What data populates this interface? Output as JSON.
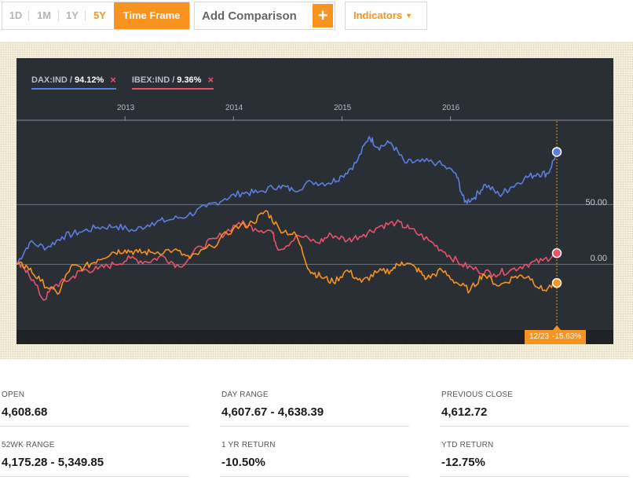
{
  "toolbar": {
    "ranges": [
      "1D",
      "1M",
      "1Y",
      "5Y"
    ],
    "active_range": "5Y",
    "time_frame_label": "Time Frame",
    "comparison_placeholder": "Add Comparison",
    "comparison_add": "+",
    "indicators_label": "Indicators",
    "indicators_caret": "▼"
  },
  "legend": {
    "dax": {
      "name": "DAX:IND /",
      "value": "94.12%",
      "remove": "×"
    },
    "ibex": {
      "name": "IBEX:IND /",
      "value": "9.36%",
      "remove": "×"
    }
  },
  "colors": {
    "dax": "#5b7fe0",
    "ibex": "#e8536a",
    "main": "#f7931e",
    "background": "#2a2e35"
  },
  "chart_data": {
    "type": "line",
    "x_ticks": [
      "2013",
      "2014",
      "2015",
      "2016"
    ],
    "y_ticks": [
      {
        "value": 50,
        "label": "50.00"
      },
      {
        "value": 0,
        "label": "0.00"
      }
    ],
    "ylim": [
      -55,
      120
    ],
    "x_range": [
      2012.0,
      2016.98
    ],
    "hover_date": "12/23",
    "hover_value": "-15.63%",
    "series": [
      {
        "name": "DAX:IND",
        "color": "#5b7fe0",
        "points": [
          [
            2012.0,
            0
          ],
          [
            2012.12,
            18
          ],
          [
            2012.28,
            14
          ],
          [
            2012.42,
            23
          ],
          [
            2012.58,
            27
          ],
          [
            2012.75,
            31
          ],
          [
            2012.92,
            32
          ],
          [
            2013.08,
            28
          ],
          [
            2013.25,
            35
          ],
          [
            2013.4,
            37
          ],
          [
            2013.58,
            41
          ],
          [
            2013.75,
            48
          ],
          [
            2013.92,
            55
          ],
          [
            2014.08,
            60
          ],
          [
            2014.22,
            60
          ],
          [
            2014.42,
            66
          ],
          [
            2014.55,
            62
          ],
          [
            2014.72,
            69
          ],
          [
            2014.88,
            68
          ],
          [
            2015.0,
            74
          ],
          [
            2015.13,
            85
          ],
          [
            2015.25,
            107
          ],
          [
            2015.33,
            98
          ],
          [
            2015.45,
            102
          ],
          [
            2015.58,
            85
          ],
          [
            2015.72,
            86
          ],
          [
            2015.88,
            85
          ],
          [
            2016.05,
            76
          ],
          [
            2016.13,
            52
          ],
          [
            2016.22,
            56
          ],
          [
            2016.32,
            67
          ],
          [
            2016.45,
            58
          ],
          [
            2016.55,
            64
          ],
          [
            2016.68,
            72
          ],
          [
            2016.8,
            76
          ],
          [
            2016.9,
            76
          ],
          [
            2016.98,
            94.12
          ]
        ]
      },
      {
        "name": "IBEX:IND",
        "color": "#e8536a",
        "points": [
          [
            2012.0,
            0
          ],
          [
            2012.1,
            -5
          ],
          [
            2012.25,
            -30
          ],
          [
            2012.35,
            -18
          ],
          [
            2012.5,
            -12
          ],
          [
            2012.6,
            -5
          ],
          [
            2012.75,
            -4
          ],
          [
            2012.9,
            0
          ],
          [
            2013.05,
            5
          ],
          [
            2013.2,
            2
          ],
          [
            2013.35,
            7
          ],
          [
            2013.5,
            -2
          ],
          [
            2013.7,
            15
          ],
          [
            2013.85,
            22
          ],
          [
            2014.05,
            35
          ],
          [
            2014.2,
            30
          ],
          [
            2014.35,
            28
          ],
          [
            2014.42,
            12
          ],
          [
            2014.6,
            24
          ],
          [
            2014.78,
            18
          ],
          [
            2014.9,
            25
          ],
          [
            2015.05,
            20
          ],
          [
            2015.2,
            25
          ],
          [
            2015.35,
            32
          ],
          [
            2015.5,
            35
          ],
          [
            2015.62,
            30
          ],
          [
            2015.8,
            20
          ],
          [
            2015.95,
            10
          ],
          [
            2016.1,
            0
          ],
          [
            2016.25,
            -5
          ],
          [
            2016.4,
            -8
          ],
          [
            2016.55,
            -5
          ],
          [
            2016.7,
            0
          ],
          [
            2016.85,
            3
          ],
          [
            2016.98,
            9.36
          ]
        ]
      },
      {
        "name": "main",
        "color": "#f7931e",
        "points": [
          [
            2012.0,
            0
          ],
          [
            2012.1,
            -2
          ],
          [
            2012.22,
            -14
          ],
          [
            2012.38,
            -25
          ],
          [
            2012.5,
            -2
          ],
          [
            2012.62,
            -3
          ],
          [
            2012.75,
            4
          ],
          [
            2012.88,
            10
          ],
          [
            2013.0,
            12
          ],
          [
            2013.12,
            10
          ],
          [
            2013.25,
            10
          ],
          [
            2013.45,
            12
          ],
          [
            2013.6,
            5
          ],
          [
            2013.8,
            15
          ],
          [
            2014.0,
            30
          ],
          [
            2014.18,
            35
          ],
          [
            2014.3,
            45
          ],
          [
            2014.42,
            30
          ],
          [
            2014.58,
            24
          ],
          [
            2014.7,
            -5
          ],
          [
            2014.8,
            -10
          ],
          [
            2014.92,
            -15
          ],
          [
            2015.05,
            -5
          ],
          [
            2015.18,
            -15
          ],
          [
            2015.32,
            -7
          ],
          [
            2015.45,
            -5
          ],
          [
            2015.55,
            2
          ],
          [
            2015.68,
            -3
          ],
          [
            2015.78,
            -12
          ],
          [
            2015.92,
            -5
          ],
          [
            2016.05,
            -15
          ],
          [
            2016.18,
            -22
          ],
          [
            2016.3,
            -8
          ],
          [
            2016.45,
            -18
          ],
          [
            2016.6,
            -10
          ],
          [
            2016.72,
            -10
          ],
          [
            2016.85,
            -22
          ],
          [
            2016.98,
            -15.63
          ]
        ]
      }
    ]
  },
  "stats": [
    {
      "label": "OPEN",
      "value": "4,608.68"
    },
    {
      "label": "DAY RANGE",
      "value": "4,607.67 - 4,638.39"
    },
    {
      "label": "PREVIOUS CLOSE",
      "value": "4,612.72"
    },
    {
      "label": "52WK RANGE",
      "value": "4,175.28 - 5,349.85"
    },
    {
      "label": "1 YR RETURN",
      "value": "-10.50%"
    },
    {
      "label": "YTD RETURN",
      "value": "-12.75%"
    }
  ]
}
